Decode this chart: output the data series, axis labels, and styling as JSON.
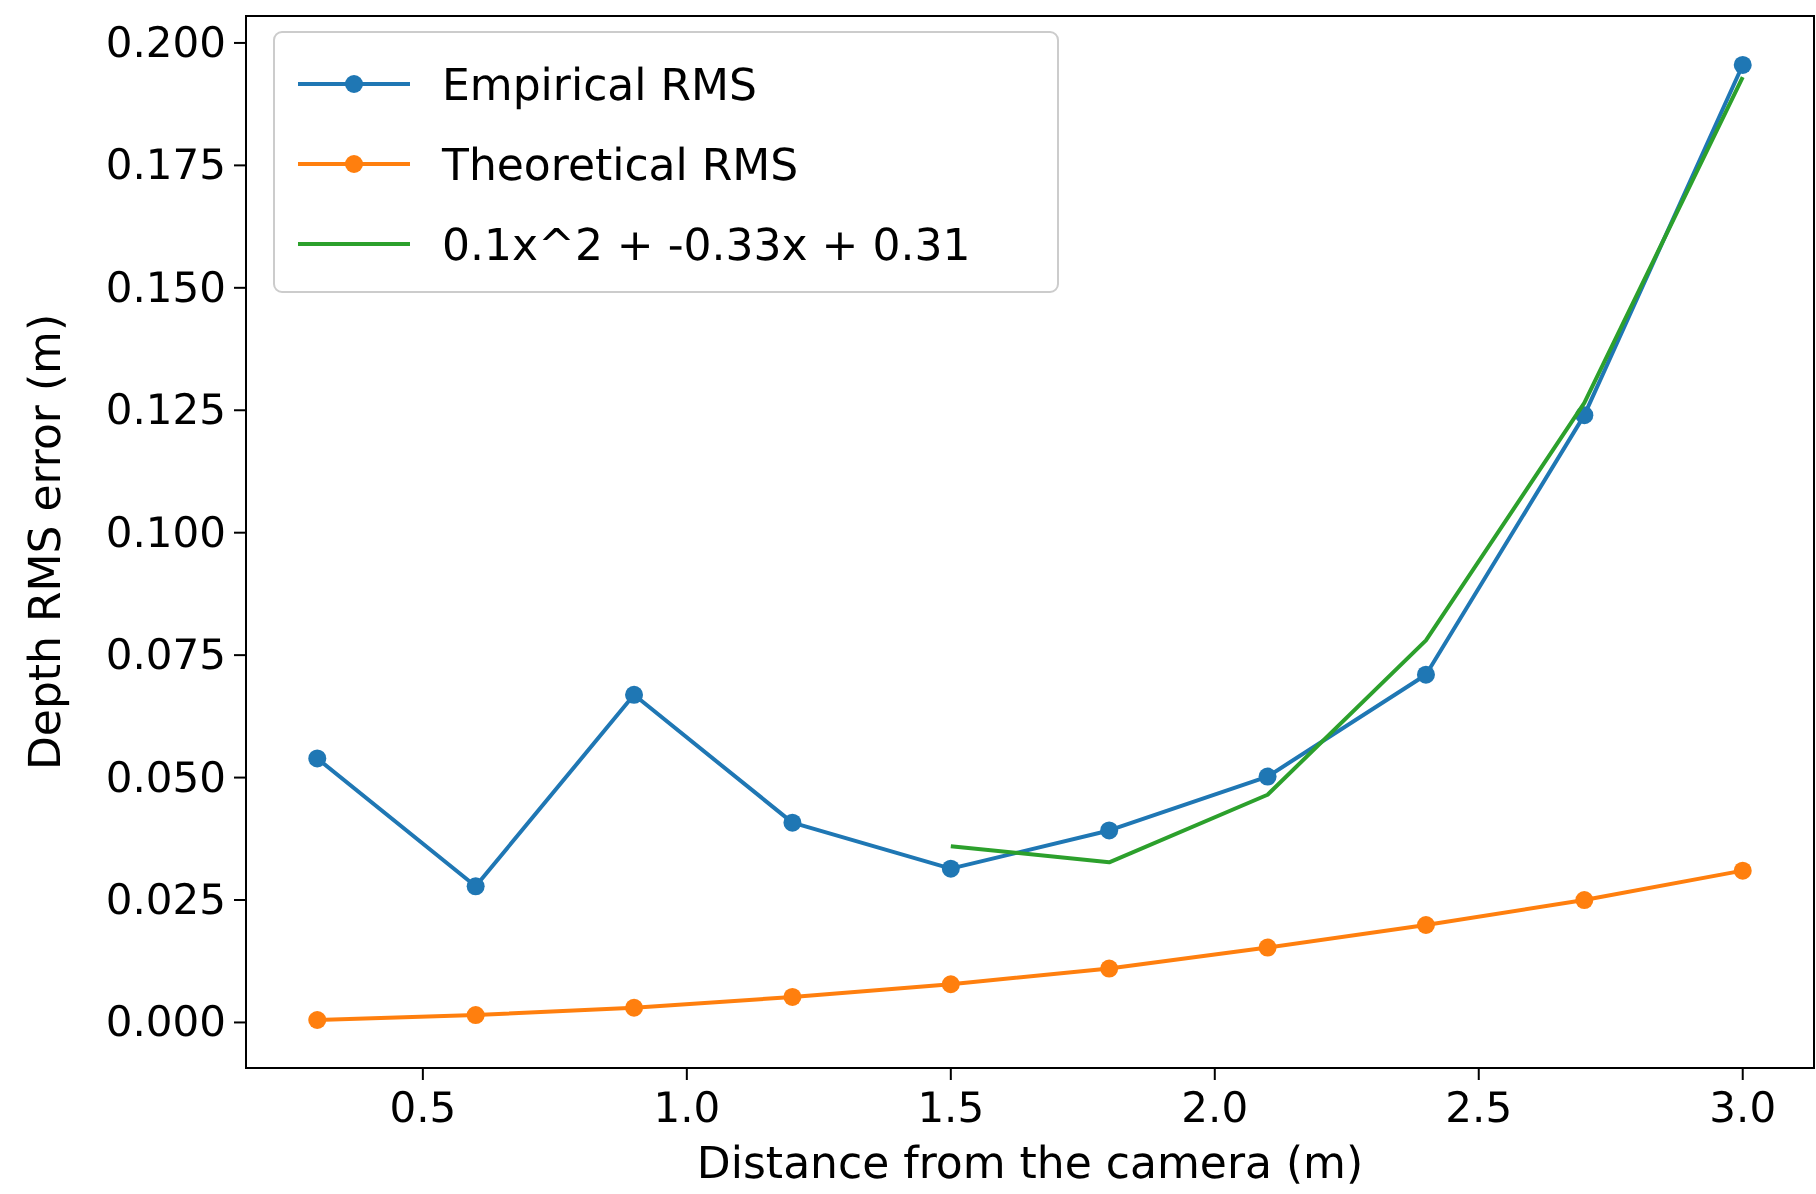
{
  "chart_data": {
    "type": "line",
    "xlabel": "Distance from the camera (m)",
    "ylabel": "Depth RMS error (m)",
    "xlim": [
      0.165,
      3.135
    ],
    "ylim": [
      -0.0093,
      0.2055
    ],
    "xticks": [
      0.5,
      {
        "value": 1,
        "label": "1.0"
      },
      1.5,
      {
        "value": 2,
        "label": "2.0"
      },
      2.5,
      {
        "value": 3,
        "label": "3.0"
      }
    ],
    "yticks": [
      {
        "value": 0,
        "label": "0.000"
      },
      {
        "value": 0.025,
        "label": "0.025"
      },
      {
        "value": 0.05,
        "label": "0.050"
      },
      {
        "value": 0.075,
        "label": "0.075"
      },
      {
        "value": 0.1,
        "label": "0.100"
      },
      {
        "value": 0.125,
        "label": "0.125"
      },
      {
        "value": 0.15,
        "label": "0.150"
      },
      {
        "value": 0.175,
        "label": "0.175"
      },
      {
        "value": 0.2,
        "label": "0.200"
      }
    ],
    "grid": false,
    "legend": "top left",
    "line_style": "solid",
    "x": [
      0.3,
      0.6,
      0.9,
      1.2,
      1.5,
      1.8,
      2.1,
      2.4,
      2.7,
      3.0
    ],
    "series": [
      {
        "name": "Empirical RMS",
        "color": "#1f77b4",
        "marker": "circle",
        "values": [
          0.0539,
          0.0278,
          0.0669,
          0.0408,
          0.0314,
          0.0392,
          0.0502,
          0.071,
          0.124,
          0.1955
        ]
      },
      {
        "name": "Theoretical RMS",
        "color": "#ff7f0e",
        "marker": "circle",
        "values": [
          0.0005,
          0.0015,
          0.003,
          0.0052,
          0.0078,
          0.011,
          0.0153,
          0.0199,
          0.025,
          0.031
        ]
      },
      {
        "name": "0.1x^2 + -0.33x + 0.31",
        "color": "#2ca02c",
        "marker": "none",
        "x": [
          1.5,
          1.8,
          2.1,
          2.4,
          2.7,
          3.0
        ],
        "values": [
          0.036,
          0.0327,
          0.0465,
          0.078,
          0.1265,
          0.193
        ]
      }
    ]
  }
}
